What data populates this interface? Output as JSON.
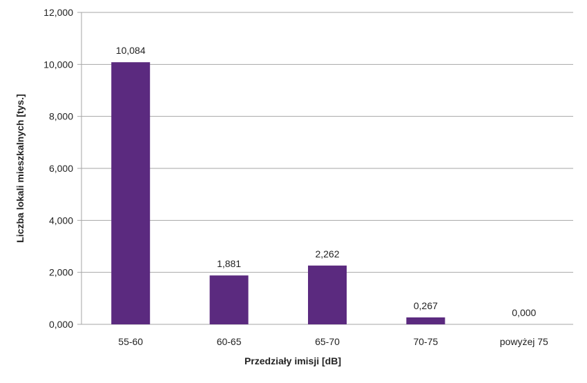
{
  "chart_data": {
    "type": "bar",
    "title": "",
    "xlabel": "Przedziały  imisji [dB]",
    "ylabel": "Liczba lokali mieszkalnych [tys.]",
    "categories": [
      "55-60",
      "60-65",
      "65-70",
      "70-75",
      "powyżej 75"
    ],
    "values": [
      10.084,
      1.881,
      2.262,
      0.267,
      0.0
    ],
    "data_labels": [
      "10,084",
      "1,881",
      "2,262",
      "0,267",
      "0,000"
    ],
    "ylim": [
      0,
      12
    ],
    "y_ticks": [
      0,
      2,
      4,
      6,
      8,
      10,
      12
    ],
    "y_tick_labels": [
      "0,000",
      "2,000",
      "4,000",
      "6,000",
      "8,000",
      "10,000",
      "12,000"
    ],
    "grid": true,
    "legend": "none",
    "bar_color": "#5b2a7f",
    "grid_color": "#a6a6a6"
  }
}
